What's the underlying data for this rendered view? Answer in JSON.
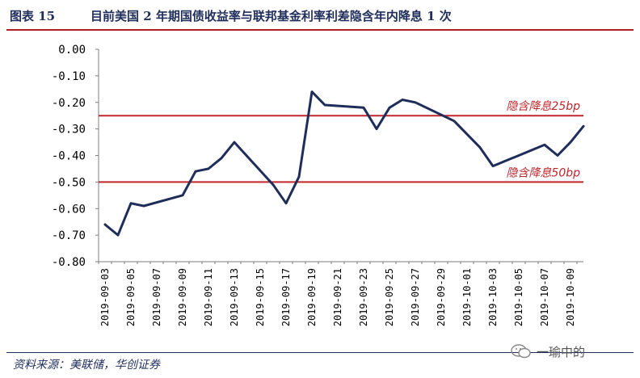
{
  "header": {
    "figure_label": "图表 15",
    "title": "目前美国 2 年期国债收益率与联邦基金利率利差隐含年内降息 1 次"
  },
  "footer": {
    "source": "资料来源：美联储，华创证券"
  },
  "watermark": {
    "icon": "wechat-icon",
    "text": "一瑜中的"
  },
  "colors": {
    "series": "#1f2d5a",
    "reference": "#c0262c",
    "header_rule": "#b01f24"
  },
  "chart_data": {
    "type": "line",
    "title": "",
    "xlabel": "",
    "ylabel": "",
    "ylim": [
      -0.8,
      0.0
    ],
    "y_ticks": [
      "0.00",
      "-0.10",
      "-0.20",
      "-0.30",
      "-0.40",
      "-0.50",
      "-0.60",
      "-0.70",
      "-0.80"
    ],
    "x_tick_labels": [
      "2019-09-03",
      "2019-09-05",
      "2019-09-07",
      "2019-09-09",
      "2019-09-11",
      "2019-09-13",
      "2019-09-15",
      "2019-09-17",
      "2019-09-19",
      "2019-09-21",
      "2019-09-23",
      "2019-09-25",
      "2019-09-27",
      "2019-09-29",
      "2019-10-01",
      "2019-10-03",
      "2019-10-05",
      "2019-10-07",
      "2019-10-09"
    ],
    "grid": false,
    "series": [
      {
        "points": [
          [
            "2019-09-03",
            -0.66
          ],
          [
            "2019-09-04",
            -0.7
          ],
          [
            "2019-09-05",
            -0.58
          ],
          [
            "2019-09-06",
            -0.59
          ],
          [
            "2019-09-09",
            -0.55
          ],
          [
            "2019-09-10",
            -0.46
          ],
          [
            "2019-09-11",
            -0.45
          ],
          [
            "2019-09-12",
            -0.41
          ],
          [
            "2019-09-13",
            -0.35
          ],
          [
            "2019-09-16",
            -0.51
          ],
          [
            "2019-09-17",
            -0.58
          ],
          [
            "2019-09-18",
            -0.48
          ],
          [
            "2019-09-19",
            -0.16
          ],
          [
            "2019-09-20",
            -0.21
          ],
          [
            "2019-09-23",
            -0.22
          ],
          [
            "2019-09-24",
            -0.3
          ],
          [
            "2019-09-25",
            -0.22
          ],
          [
            "2019-09-26",
            -0.19
          ],
          [
            "2019-09-27",
            -0.2
          ],
          [
            "2019-09-30",
            -0.27
          ],
          [
            "2019-10-02",
            -0.37
          ],
          [
            "2019-10-03",
            -0.44
          ],
          [
            "2019-10-07",
            -0.36
          ],
          [
            "2019-10-08",
            -0.4
          ],
          [
            "2019-10-09",
            -0.35
          ],
          [
            "2019-10-10",
            -0.29
          ]
        ]
      }
    ],
    "reference_lines": [
      {
        "value": -0.25,
        "label": "隐含降息25bp"
      },
      {
        "value": -0.5,
        "label": "隐含降息50bp"
      }
    ]
  }
}
